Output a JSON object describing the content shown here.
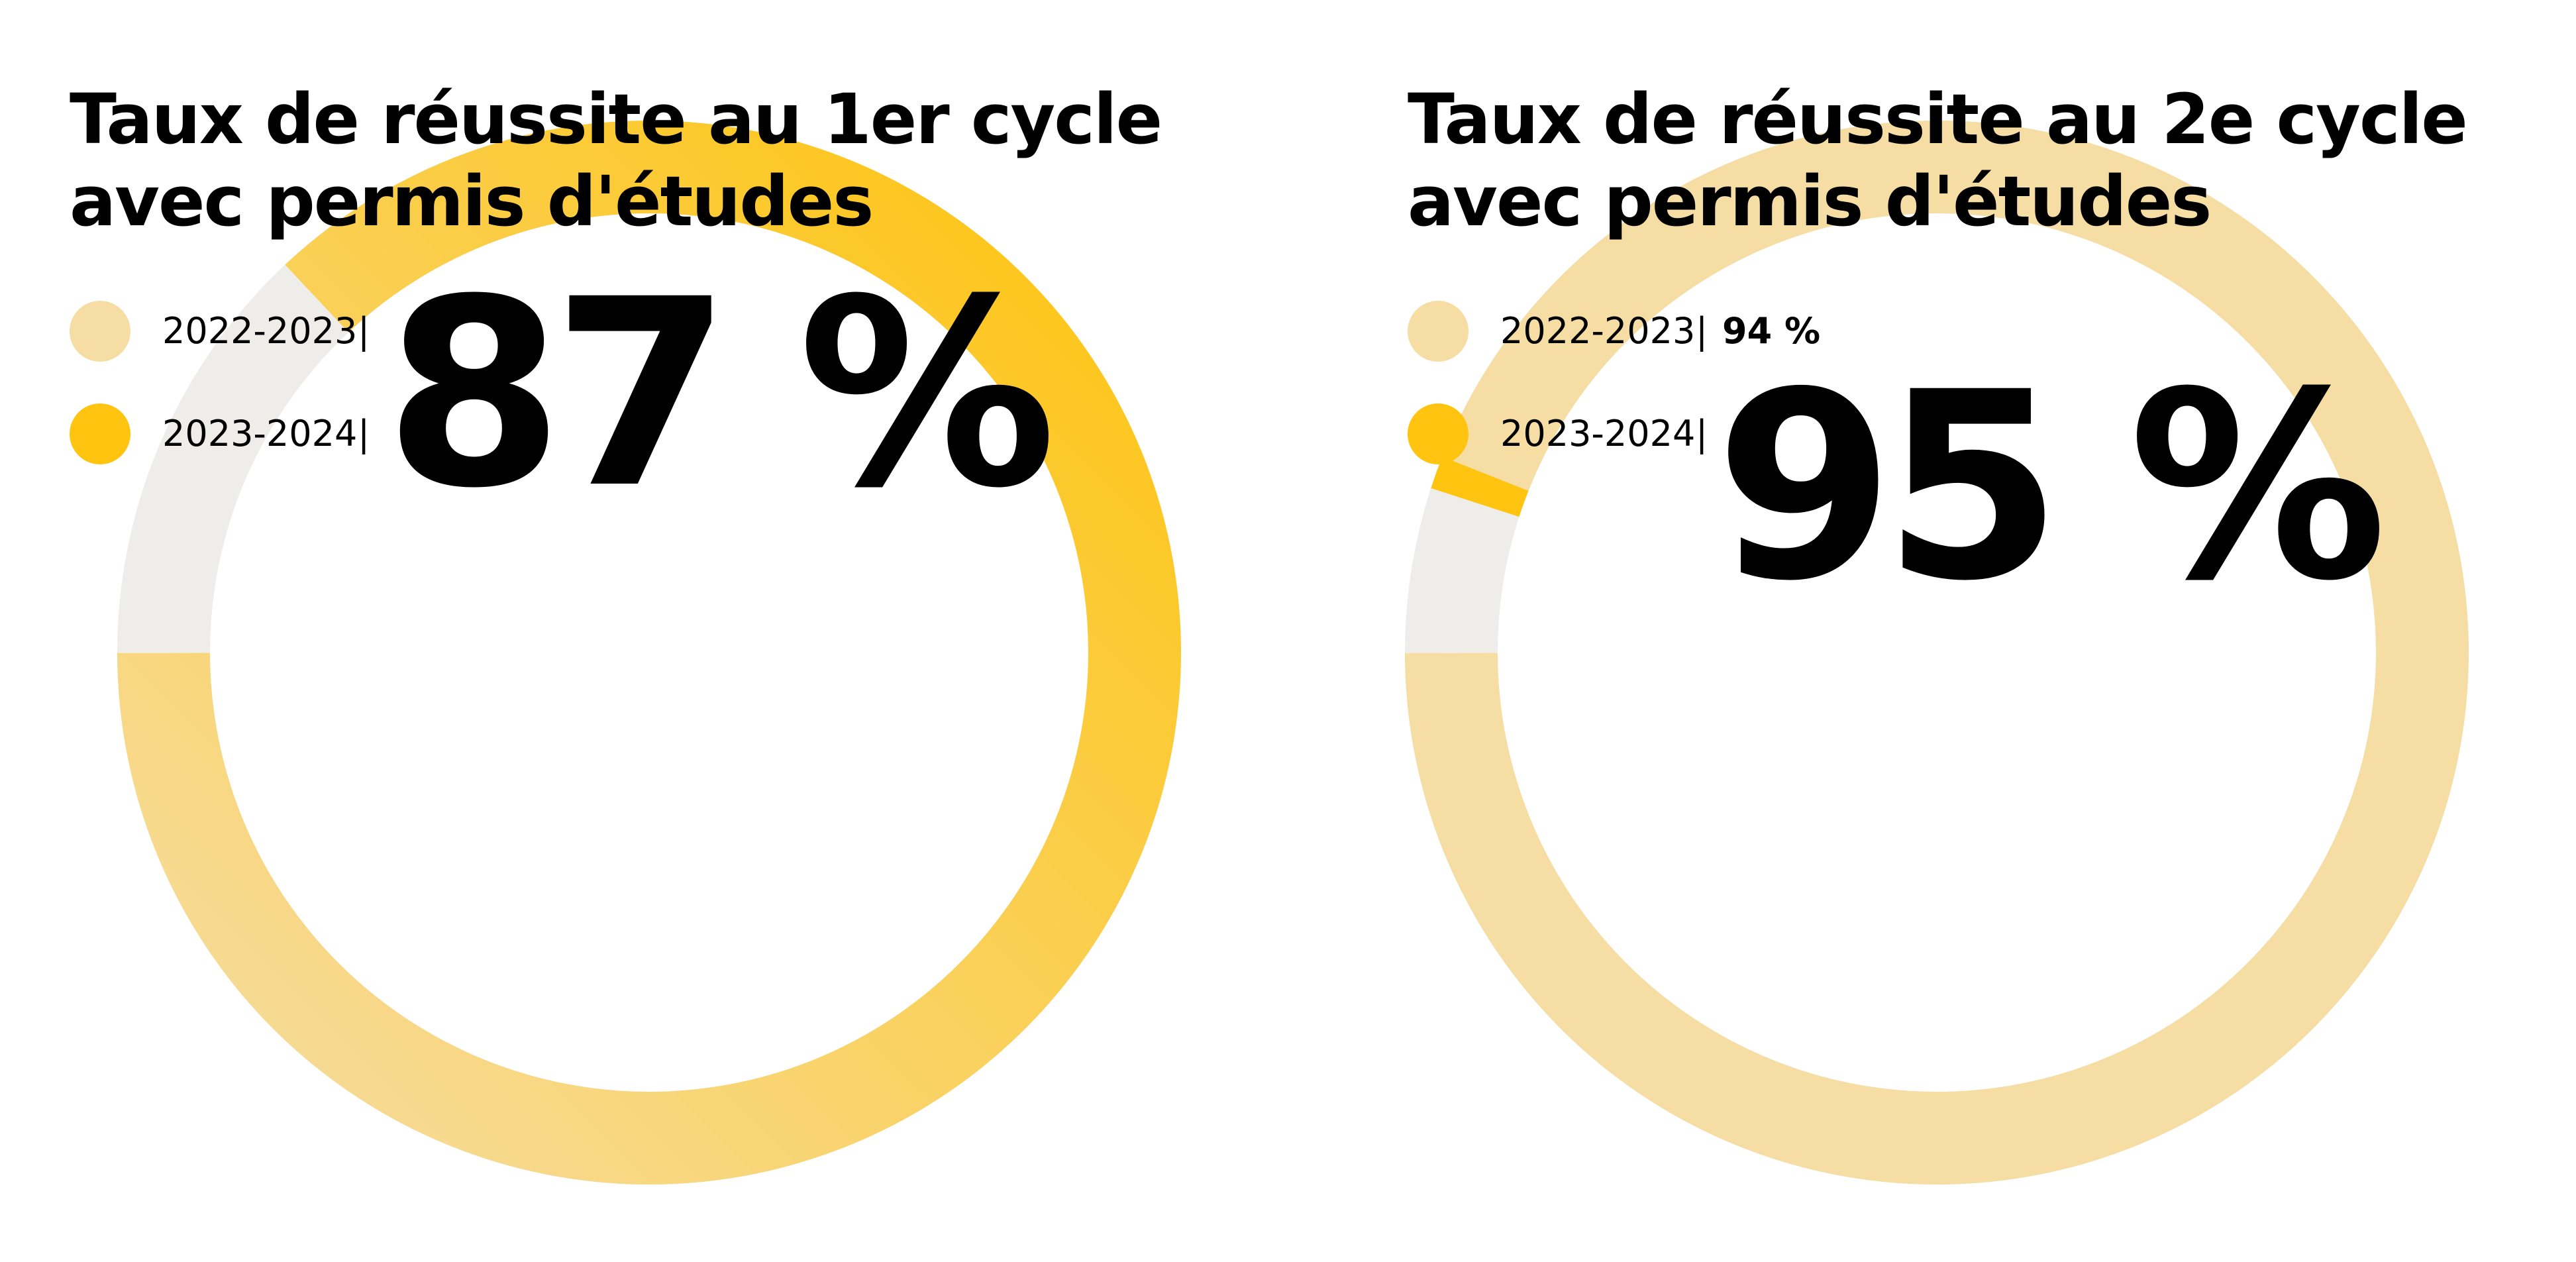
{
  "colors": {
    "prev_year": "#F6DDA3",
    "curr_year": "#FEC40F",
    "remainder": "#EEEDEA",
    "text": "#000000"
  },
  "chart_data": [
    {
      "type": "pie",
      "title": "Taux de réussite au 1er cycle avec permis d'études",
      "title_lines": [
        "Taux de réussite au 1er cycle",
        "avec permis d'études"
      ],
      "series": [
        {
          "name": "2022-2023",
          "value": null,
          "label": ""
        },
        {
          "name": "2023-2024",
          "value": 87,
          "label": "87 %"
        }
      ]
    },
    {
      "type": "pie",
      "title": "Taux de réussite au 2e cycle avec permis d'études",
      "title_lines": [
        "Taux de réussite au 2e cycle",
        "avec permis d'études"
      ],
      "series": [
        {
          "name": "2022-2023",
          "value": 94,
          "label": "94 %"
        },
        {
          "name": "2023-2024",
          "value": 95,
          "label": "95 %"
        }
      ]
    }
  ],
  "legend_separator": "|"
}
